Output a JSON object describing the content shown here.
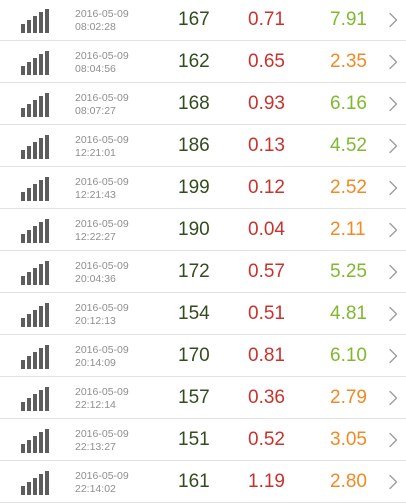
{
  "colors": {
    "bars": "#5d5d5d",
    "date": "#8f8f8f",
    "value1": "#334d1f",
    "value2": "#c8332e",
    "value3_green": "#80b92f",
    "value3_orange": "#f08a24",
    "chevron": "#9a9a9a",
    "divider": "#e3e3e3"
  },
  "icons": {
    "signal": "signal-strength-icon",
    "chevron": "chevron-right-icon"
  },
  "rows": [
    {
      "date": "2016-05-09",
      "time": "08:02:28",
      "v1": "167",
      "v2": "0.71",
      "v3": "7.91",
      "v3_color": "green"
    },
    {
      "date": "2016-05-09",
      "time": "08:04:56",
      "v1": "162",
      "v2": "0.65",
      "v3": "2.35",
      "v3_color": "orange"
    },
    {
      "date": "2016-05-09",
      "time": "08:07:27",
      "v1": "168",
      "v2": "0.93",
      "v3": "6.16",
      "v3_color": "green"
    },
    {
      "date": "2016-05-09",
      "time": "12:21:01",
      "v1": "186",
      "v2": "0.13",
      "v3": "4.52",
      "v3_color": "green"
    },
    {
      "date": "2016-05-09",
      "time": "12:21:43",
      "v1": "199",
      "v2": "0.12",
      "v3": "2.52",
      "v3_color": "orange"
    },
    {
      "date": "2016-05-09",
      "time": "12:22:27",
      "v1": "190",
      "v2": "0.04",
      "v3": "2.11",
      "v3_color": "orange"
    },
    {
      "date": "2016-05-09",
      "time": "20:04:36",
      "v1": "172",
      "v2": "0.57",
      "v3": "5.25",
      "v3_color": "green"
    },
    {
      "date": "2016-05-09",
      "time": "20:12:13",
      "v1": "154",
      "v2": "0.51",
      "v3": "4.81",
      "v3_color": "green"
    },
    {
      "date": "2016-05-09",
      "time": "20:14:09",
      "v1": "170",
      "v2": "0.81",
      "v3": "6.10",
      "v3_color": "green"
    },
    {
      "date": "2016-05-09",
      "time": "22:12:14",
      "v1": "157",
      "v2": "0.36",
      "v3": "2.79",
      "v3_color": "orange"
    },
    {
      "date": "2016-05-09",
      "time": "22:13:27",
      "v1": "151",
      "v2": "0.52",
      "v3": "3.05",
      "v3_color": "orange"
    },
    {
      "date": "2016-05-09",
      "time": "22:14:02",
      "v1": "161",
      "v2": "1.19",
      "v3": "2.80",
      "v3_color": "orange"
    }
  ]
}
